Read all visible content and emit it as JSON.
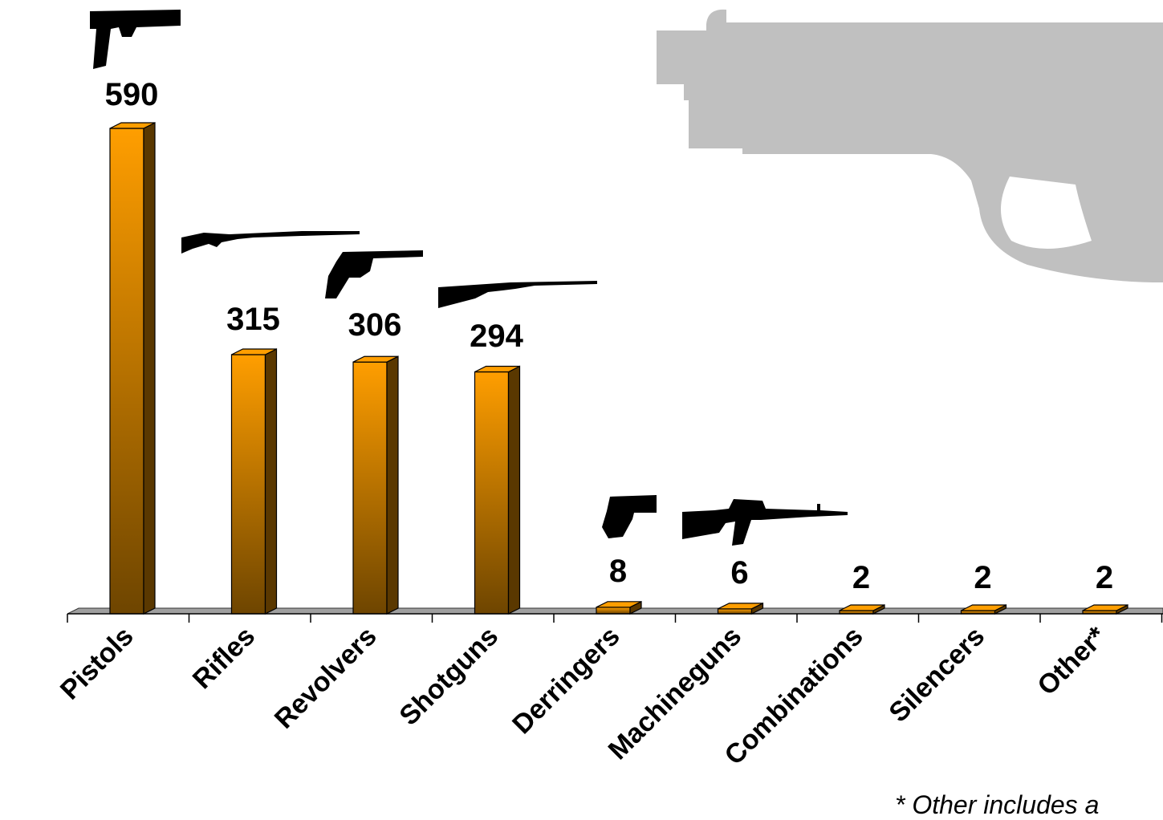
{
  "chart_data": {
    "type": "bar",
    "categories": [
      "Pistols",
      "Rifles",
      "Revolvers",
      "Shotguns",
      "Derringers",
      "Machineguns",
      "Combinations",
      "Silencers",
      "Other*"
    ],
    "values": [
      590,
      315,
      306,
      294,
      8,
      6,
      2,
      2,
      2
    ],
    "data_labels": [
      "590",
      "315",
      "306",
      "294",
      "8",
      "6",
      "2",
      "2",
      "2"
    ],
    "ylim": [
      0,
      600
    ],
    "grid": false,
    "legend": "none",
    "bar_style": "3d",
    "category_icons": [
      "pistol-icon",
      "rifle-icon",
      "revolver-icon",
      "shotgun-icon",
      "derringer-icon",
      "machinegun-icon",
      "",
      "",
      ""
    ]
  },
  "footnote": "* Other includes a",
  "colors": {
    "bar_top": "#ff9e00",
    "bar_bottom": "#6e4500",
    "bar_side": "#5a3800",
    "floor": "#a0a0a0",
    "background_gun": "#c0c0c0",
    "icon": "#000000"
  }
}
